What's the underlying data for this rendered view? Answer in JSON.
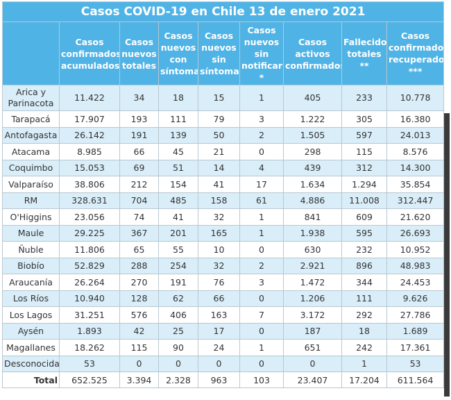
{
  "title": "Casos COVID-19 en Chile 13 de enero 2021",
  "headers": [
    "Casos confirmados acumulados",
    "Casos nuevos totales",
    "Casos nuevos con síntomas",
    "Casos nuevos sin síntomas",
    "Casos nuevos sin notificar *",
    "Casos activos confirmados",
    "Fallecidos totales **",
    "Casos confirmados recuperados ***"
  ],
  "rows": [
    [
      "Arica y Parinacota",
      "11.422",
      "34",
      "18",
      "15",
      "1",
      "405",
      "233",
      "10.778"
    ],
    [
      "Tarapacá",
      "17.907",
      "193",
      "111",
      "79",
      "3",
      "1.222",
      "305",
      "16.380"
    ],
    [
      "Antofagasta",
      "26.142",
      "191",
      "139",
      "50",
      "2",
      "1.505",
      "597",
      "24.013"
    ],
    [
      "Atacama",
      "8.985",
      "66",
      "45",
      "21",
      "0",
      "298",
      "115",
      "8.576"
    ],
    [
      "Coquimbo",
      "15.053",
      "69",
      "51",
      "14",
      "4",
      "439",
      "312",
      "14.300"
    ],
    [
      "Valparaíso",
      "38.806",
      "212",
      "154",
      "41",
      "17",
      "1.634",
      "1.294",
      "35.854"
    ],
    [
      "RM",
      "328.631",
      "704",
      "485",
      "158",
      "61",
      "4.886",
      "11.008",
      "312.447"
    ],
    [
      "O'Higgins",
      "23.056",
      "74",
      "41",
      "32",
      "1",
      "841",
      "609",
      "21.620"
    ],
    [
      "Maule",
      "29.225",
      "367",
      "201",
      "165",
      "1",
      "1.938",
      "595",
      "26.693"
    ],
    [
      "Ñuble",
      "11.806",
      "65",
      "55",
      "10",
      "0",
      "630",
      "232",
      "10.952"
    ],
    [
      "Biobío",
      "52.829",
      "288",
      "254",
      "32",
      "2",
      "2.921",
      "896",
      "48.983"
    ],
    [
      "Araucanía",
      "26.264",
      "270",
      "191",
      "76",
      "3",
      "1.472",
      "344",
      "24.453"
    ],
    [
      "Los Ríos",
      "10.940",
      "128",
      "62",
      "66",
      "0",
      "1.206",
      "111",
      "9.626"
    ],
    [
      "Los Lagos",
      "31.251",
      "576",
      "406",
      "163",
      "7",
      "3.172",
      "292",
      "27.786"
    ],
    [
      "Aysén",
      "1.893",
      "42",
      "25",
      "17",
      "0",
      "187",
      "18",
      "1.689"
    ],
    [
      "Magallanes",
      "18.262",
      "115",
      "90",
      "24",
      "1",
      "651",
      "242",
      "17.361"
    ],
    [
      "Desconocida",
      "53",
      "0",
      "0",
      "0",
      "0",
      "0",
      "1",
      "53"
    ]
  ],
  "total": [
    "Total",
    "652.525",
    "3.394",
    "2.328",
    "963",
    "103",
    "23.407",
    "17.204",
    "611.564"
  ]
}
